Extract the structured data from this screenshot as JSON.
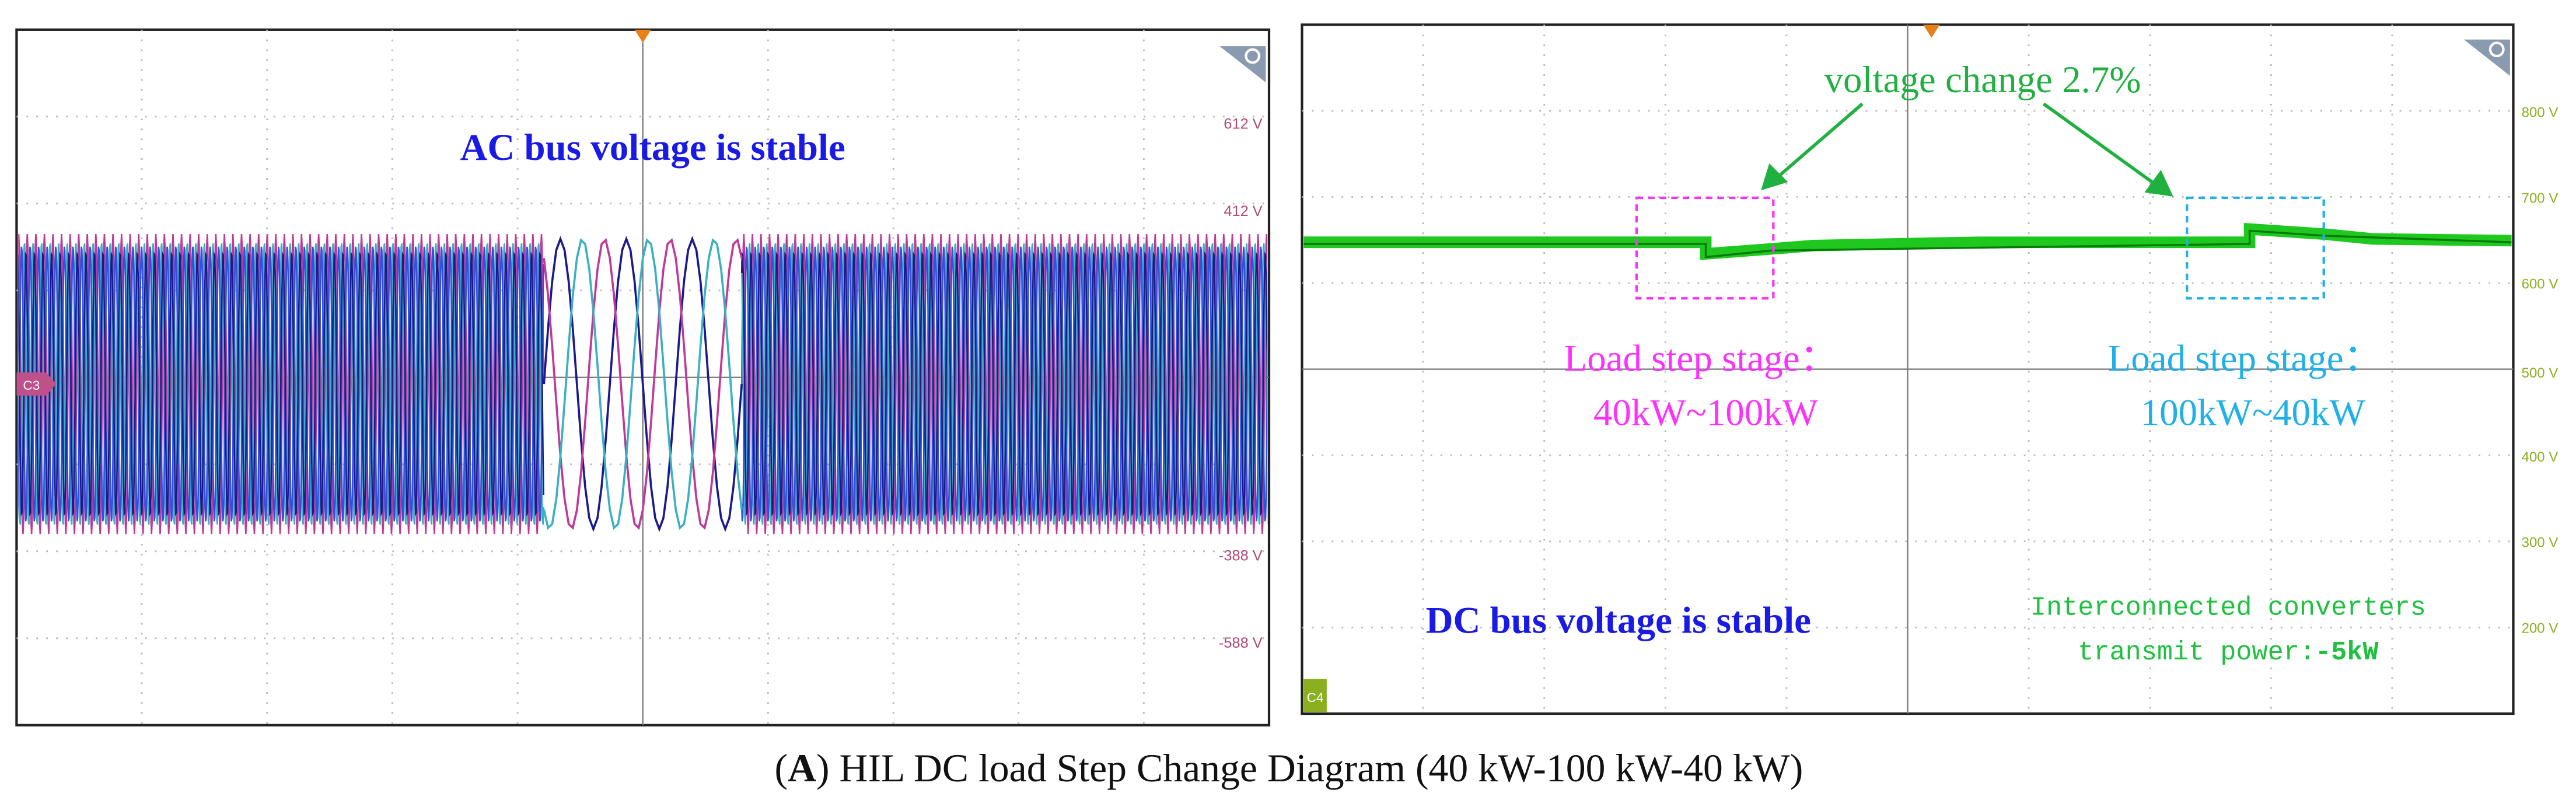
{
  "left_panel": {
    "title": "AC bus voltage is stable",
    "channel": "C3",
    "axis_labels": [
      "612 V",
      "412 V",
      "-388 V",
      "-588 V"
    ]
  },
  "right_panel": {
    "annotation": "voltage  change 2.7%",
    "load_step_1": {
      "label": "Load step stage：",
      "range": "40kW~100kW"
    },
    "load_step_2": {
      "label": "Load step stage：",
      "range": "100kW~40kW"
    },
    "title": "DC bus voltage is stable",
    "power_note": {
      "line1": "Interconnected converters",
      "line2_prefix": "transmit power:",
      "line2_value": "-5kW"
    },
    "channel": "C4",
    "axis_labels": [
      "800 V",
      "700 V",
      "600 V",
      "500 V",
      "400 V",
      "300 V",
      "200 V"
    ]
  },
  "caption": {
    "open": "(",
    "label": "A",
    "text": ") HIL DC load Step Change Diagram (40 kW-100 kW-40 kW)"
  }
}
